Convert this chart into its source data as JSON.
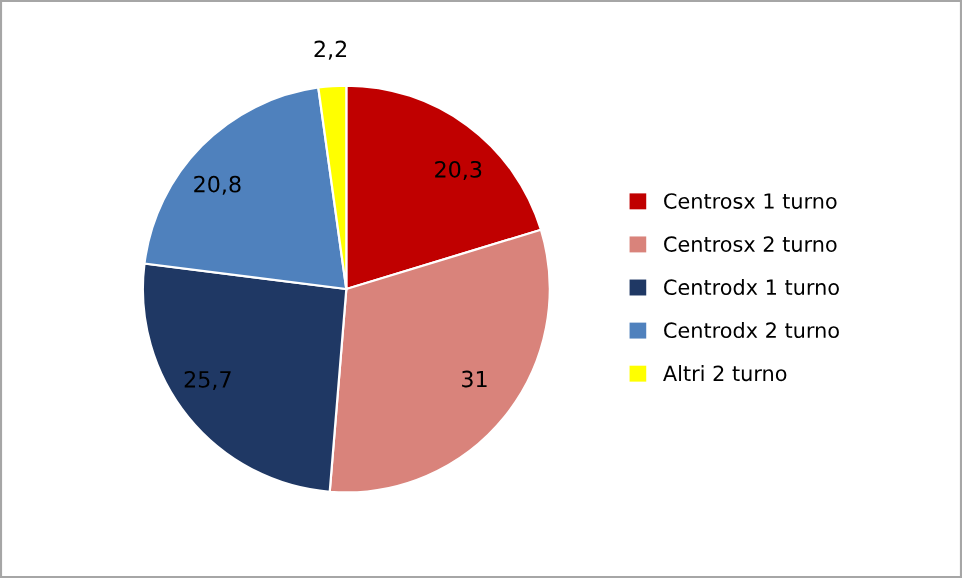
{
  "chart_data": {
    "type": "pie",
    "categories": [
      "Centrosx 1 turno",
      "Centrosx 2 turno",
      "Centrodx 1 turno",
      "Centrodx 2 turno",
      "Altri 2 turno"
    ],
    "values": [
      20.3,
      31,
      25.7,
      20.8,
      2.2
    ],
    "value_labels": [
      "20,3",
      "31",
      "25,7",
      "20,8",
      "2,2"
    ],
    "colors": [
      "#c00000",
      "#d9837b",
      "#1f3864",
      "#4f81bd",
      "#ffff00"
    ],
    "legend": "right"
  }
}
